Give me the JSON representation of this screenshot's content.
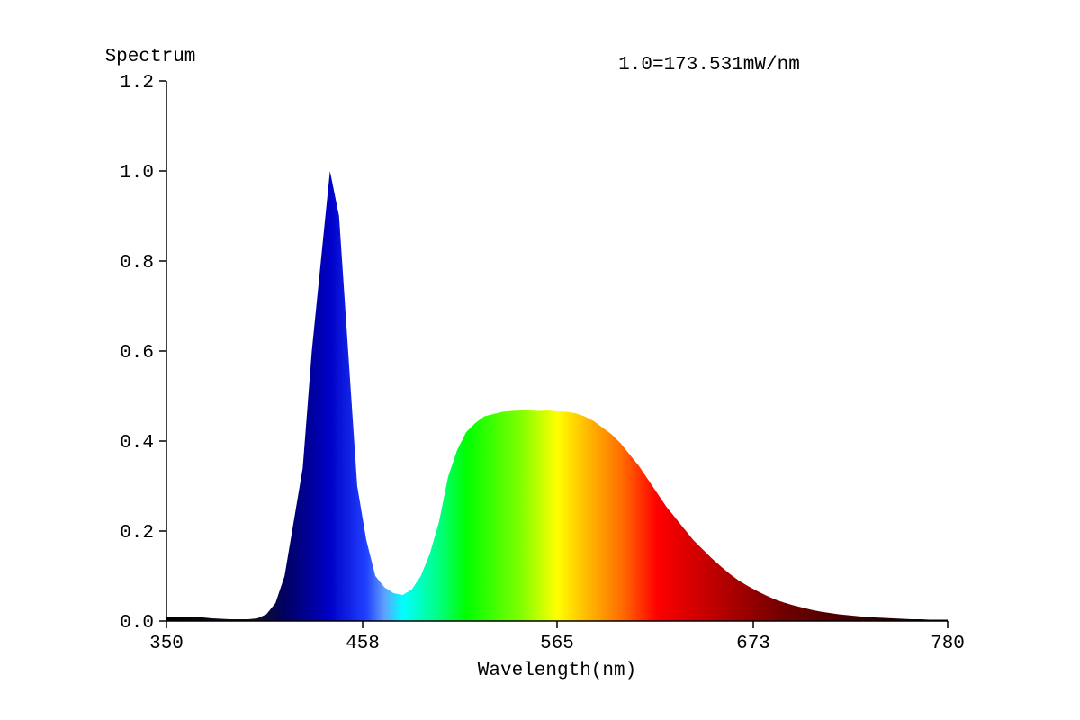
{
  "chart_data": {
    "type": "area",
    "y_label": "Spectrum",
    "annotation": "1.0=173.531mW/nm",
    "x_label": "Wavelength(nm)",
    "xlim": [
      350,
      780
    ],
    "xticks": [
      350,
      458,
      565,
      673,
      780
    ],
    "ylim": [
      0,
      1.2
    ],
    "yticks": [
      {
        "value": 0,
        "label": "0.0"
      },
      0.2,
      0.4,
      0.6,
      0.8,
      {
        "value": 1,
        "label": "1.0"
      },
      1.2
    ],
    "x": [
      350,
      355,
      360,
      365,
      370,
      375,
      380,
      385,
      390,
      395,
      400,
      405,
      410,
      415,
      420,
      425,
      430,
      435,
      440,
      445,
      450,
      455,
      460,
      465,
      470,
      475,
      480,
      485,
      490,
      495,
      500,
      505,
      510,
      515,
      520,
      525,
      530,
      535,
      540,
      545,
      550,
      555,
      560,
      565,
      570,
      575,
      580,
      585,
      590,
      595,
      600,
      605,
      610,
      615,
      620,
      625,
      630,
      635,
      640,
      645,
      650,
      655,
      660,
      665,
      670,
      675,
      680,
      685,
      690,
      695,
      700,
      705,
      710,
      715,
      720,
      725,
      730,
      735,
      740,
      745,
      750,
      755,
      760,
      765,
      770,
      775,
      780
    ],
    "values": [
      0.01,
      0.01,
      0.01,
      0.008,
      0.008,
      0.006,
      0.005,
      0.004,
      0.004,
      0.004,
      0.006,
      0.015,
      0.04,
      0.1,
      0.22,
      0.34,
      0.6,
      0.8,
      1.0,
      0.9,
      0.6,
      0.3,
      0.18,
      0.1,
      0.075,
      0.062,
      0.058,
      0.07,
      0.1,
      0.15,
      0.22,
      0.32,
      0.38,
      0.42,
      0.44,
      0.455,
      0.46,
      0.465,
      0.467,
      0.468,
      0.468,
      0.467,
      0.468,
      0.466,
      0.465,
      0.462,
      0.455,
      0.445,
      0.43,
      0.415,
      0.395,
      0.37,
      0.345,
      0.315,
      0.285,
      0.255,
      0.23,
      0.205,
      0.18,
      0.16,
      0.14,
      0.122,
      0.105,
      0.09,
      0.078,
      0.067,
      0.057,
      0.048,
      0.041,
      0.035,
      0.03,
      0.025,
      0.021,
      0.018,
      0.015,
      0.013,
      0.011,
      0.009,
      0.008,
      0.007,
      0.006,
      0.005,
      0.004,
      0.004,
      0.003,
      0.003,
      0.003
    ]
  }
}
